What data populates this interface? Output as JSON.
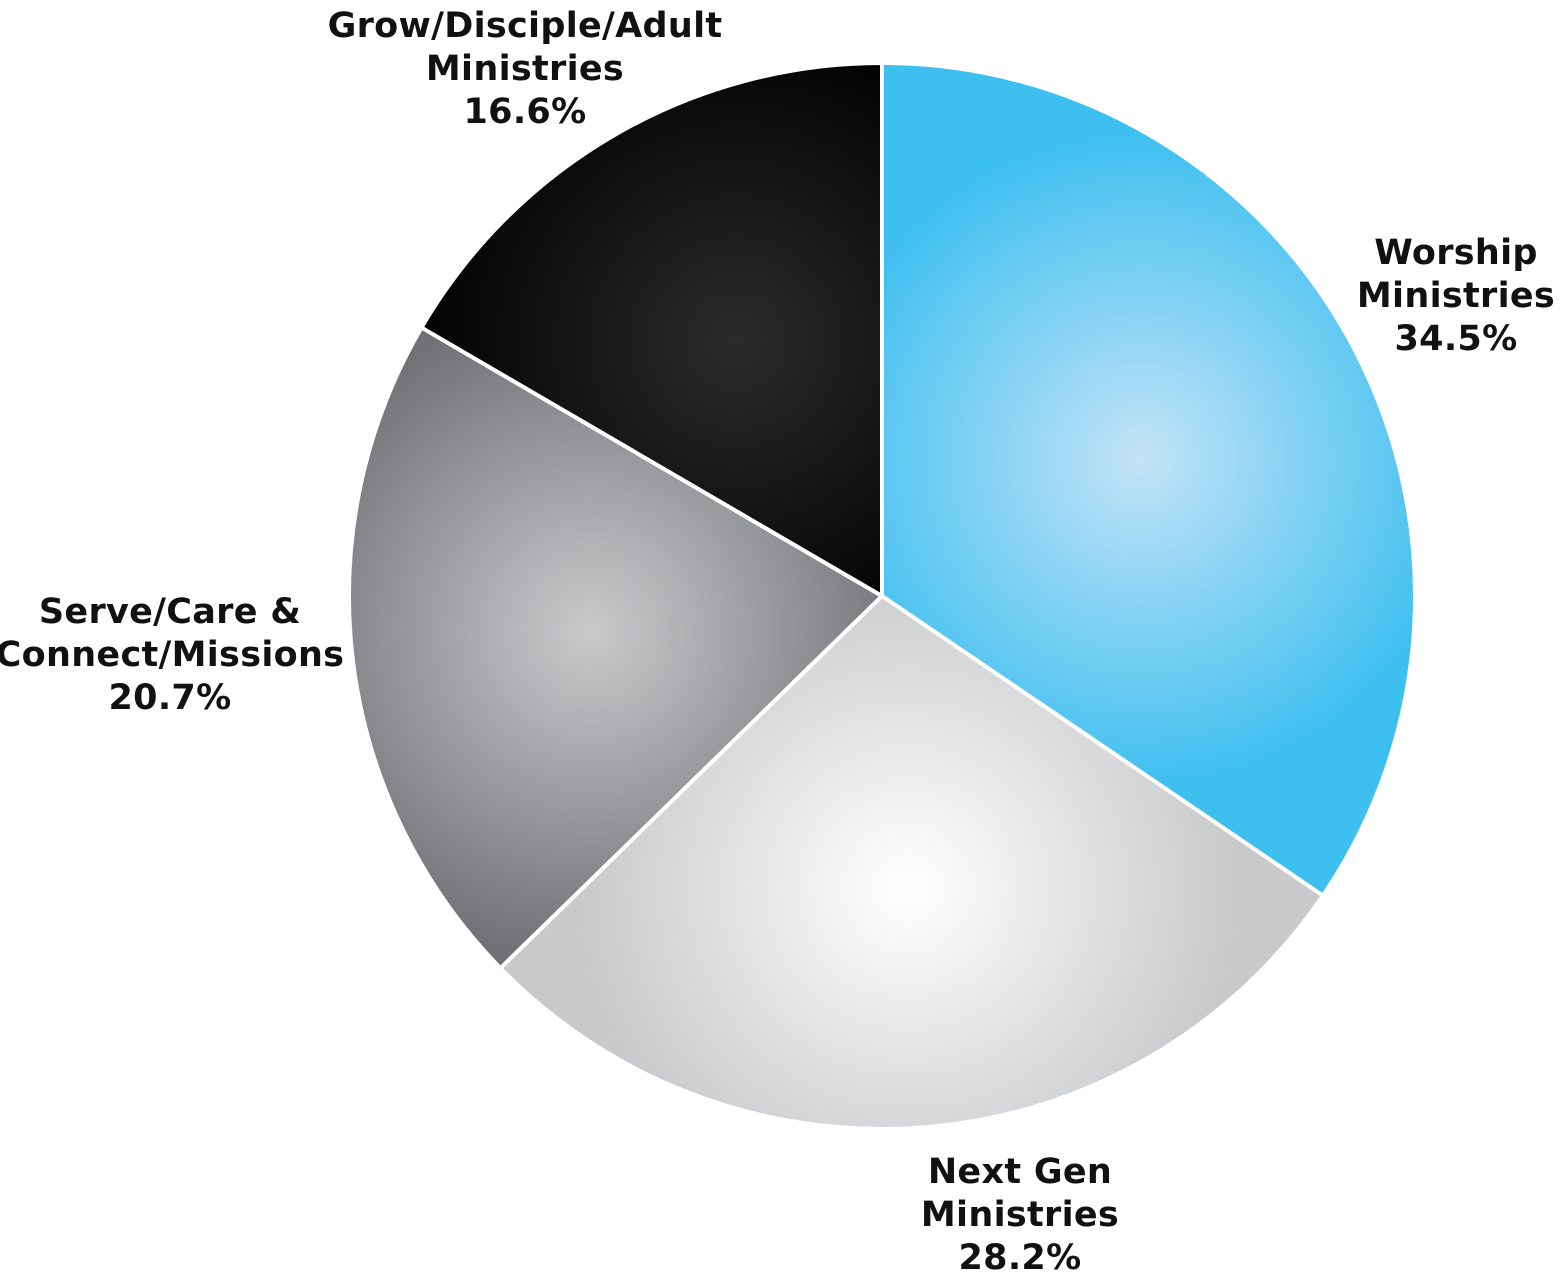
{
  "chart_data": {
    "type": "pie",
    "start_angle": "12 o'clock",
    "direction": "clockwise",
    "slices": [
      {
        "name": "Worship Ministries",
        "label_lines": [
          "Worship",
          "Ministries"
        ],
        "value": 34.5,
        "value_label": "34.5%",
        "color": "#3dbff0",
        "highlight": "#c4e3f7"
      },
      {
        "name": "Next Gen Ministries",
        "label_lines": [
          "Next Gen",
          "Ministries"
        ],
        "value": 28.2,
        "value_label": "28.2%",
        "color": "#c8c9cb",
        "highlight": "#ffffff"
      },
      {
        "name": "Serve/Care & Connect/Missions",
        "label_lines": [
          "Serve/Care &",
          "Connect/Missions"
        ],
        "value": 20.7,
        "value_label": "20.7%",
        "color": "#707174",
        "highlight": "#c9cacc"
      },
      {
        "name": "Grow/Disciple/Adult Ministries",
        "label_lines": [
          "Grow/Disciple/Adult",
          "Ministries"
        ],
        "value": 16.6,
        "value_label": "16.6%",
        "color": "#000000",
        "highlight": "#2d2a2b"
      }
    ],
    "separator_color": "#ffffff"
  }
}
